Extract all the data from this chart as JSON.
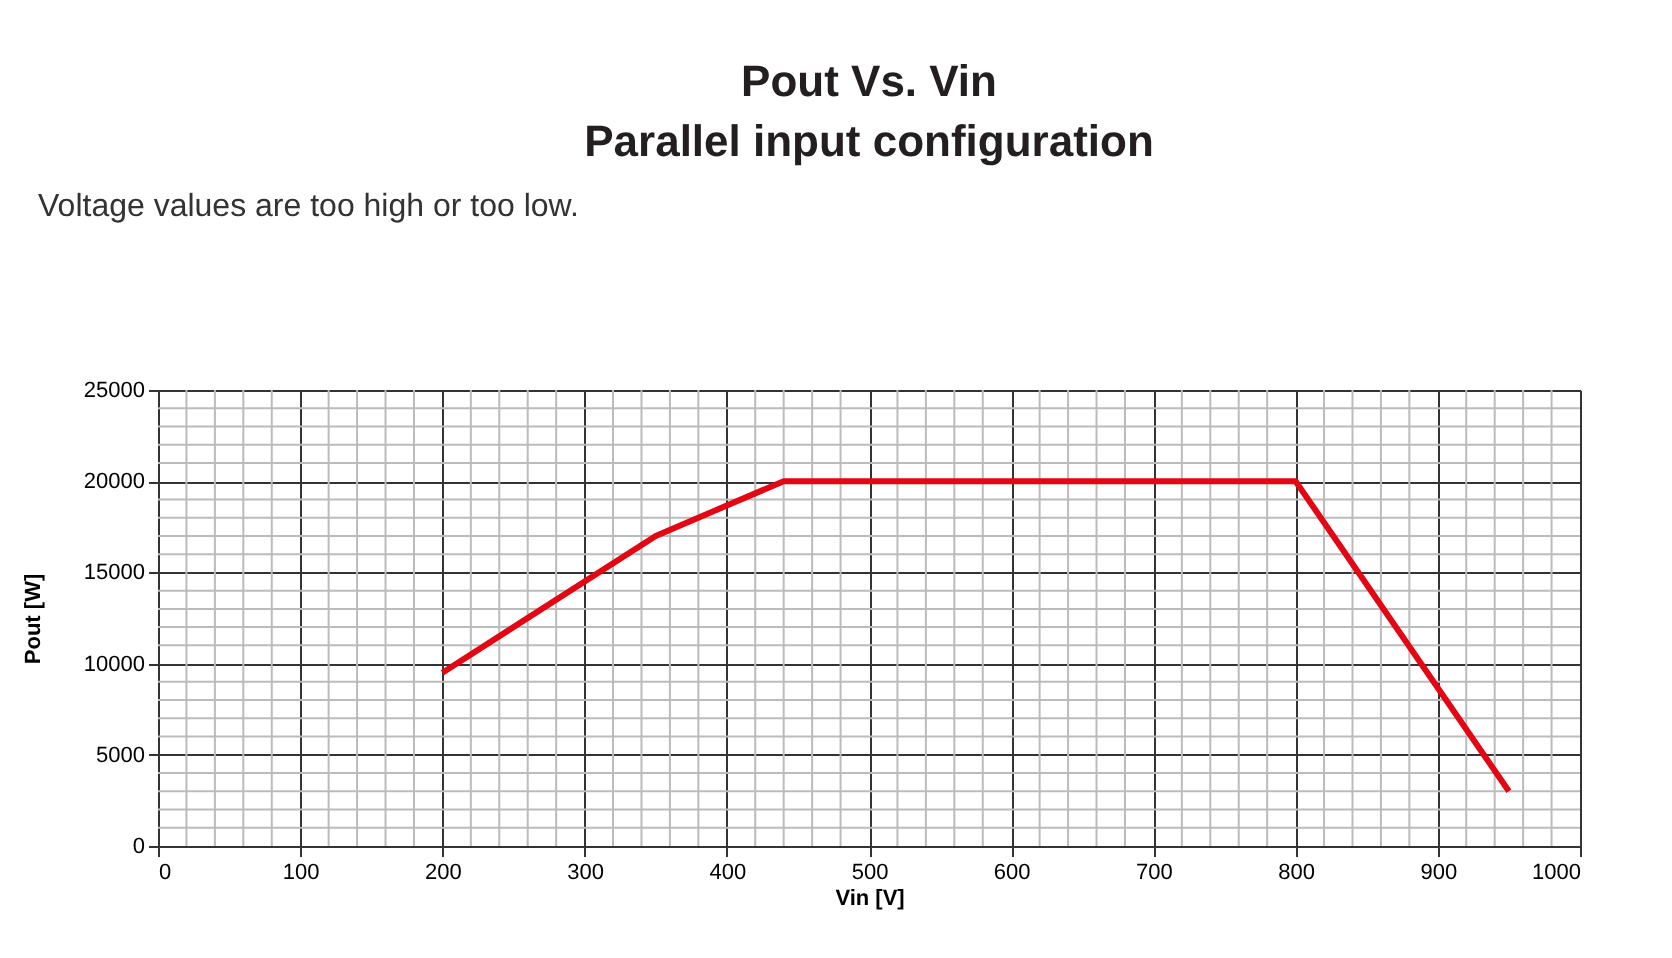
{
  "chart_data": {
    "type": "line",
    "title": "Pout Vs. Vin\nParallel input configuration",
    "xlabel": "Vin [V]",
    "ylabel": "Pout [W]",
    "annotations": [
      "Voltage values are too high or too low."
    ],
    "x": [
      200,
      350,
      440,
      800,
      950
    ],
    "series": [
      {
        "color": "#e30613",
        "values": [
          9500,
          17000,
          20000,
          20000,
          3000
        ]
      }
    ],
    "xlim": [
      0,
      1000
    ],
    "xticks": [
      0,
      100,
      200,
      300,
      400,
      500,
      600,
      700,
      800,
      900,
      1000
    ],
    "ylim": [
      0,
      25000
    ],
    "yticks": [
      0,
      5000,
      10000,
      15000,
      20000,
      25000
    ],
    "grid": true,
    "marker": "none",
    "line_style": "solid"
  }
}
